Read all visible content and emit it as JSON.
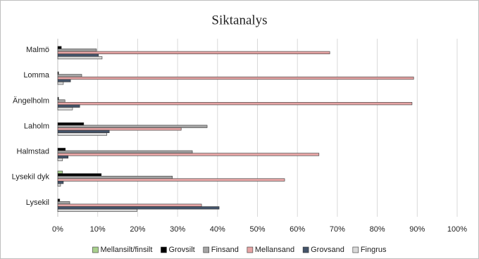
{
  "chart_data": {
    "type": "bar",
    "orientation": "horizontal",
    "title": "Siktanalys",
    "categories": [
      "Malmö",
      "Lomma",
      "Ängelholm",
      "Laholm",
      "Halmstad",
      "Lysekil dyk",
      "Lysekil"
    ],
    "series": [
      {
        "name": "Mellansilt/finsilt",
        "color": "#a9d18e",
        "values": [
          0,
          0,
          0,
          0,
          0,
          1.2,
          0
        ]
      },
      {
        "name": "Grovsilt",
        "color": "#000000",
        "values": [
          0.9,
          0.2,
          0.2,
          6.5,
          1.9,
          10.9,
          0.5
        ]
      },
      {
        "name": "Finsand",
        "color": "#a5a5a5",
        "values": [
          9.7,
          6.0,
          1.8,
          37.4,
          33.7,
          28.7,
          3.0
        ]
      },
      {
        "name": "Mellansand",
        "color": "#e6a5a5",
        "values": [
          68.1,
          89.1,
          88.7,
          30.9,
          65.4,
          56.8,
          36.0
        ]
      },
      {
        "name": "Grovsand",
        "color": "#44546a",
        "values": [
          10.2,
          3.2,
          5.5,
          12.9,
          2.6,
          1.4,
          40.4
        ]
      },
      {
        "name": "Fingrus",
        "color": "#d9d9d9",
        "values": [
          11.1,
          1.4,
          3.7,
          12.3,
          1.2,
          0.7,
          19.8
        ]
      }
    ],
    "xlim": [
      0,
      100
    ],
    "xticks": [
      {
        "value": 0,
        "label": "0%"
      },
      {
        "value": 10,
        "label": "10%"
      },
      {
        "value": 20,
        "label": "20%"
      },
      {
        "value": 30,
        "label": "30%"
      },
      {
        "value": 40,
        "label": "40%"
      },
      {
        "value": 50,
        "label": "50%"
      },
      {
        "value": 60,
        "label": "60%"
      },
      {
        "value": 70,
        "label": "70%"
      },
      {
        "value": 80,
        "label": "80%"
      },
      {
        "value": 90,
        "label": "90%"
      },
      {
        "value": 100,
        "label": "100%"
      }
    ],
    "grid": true,
    "legend": "bottom"
  }
}
